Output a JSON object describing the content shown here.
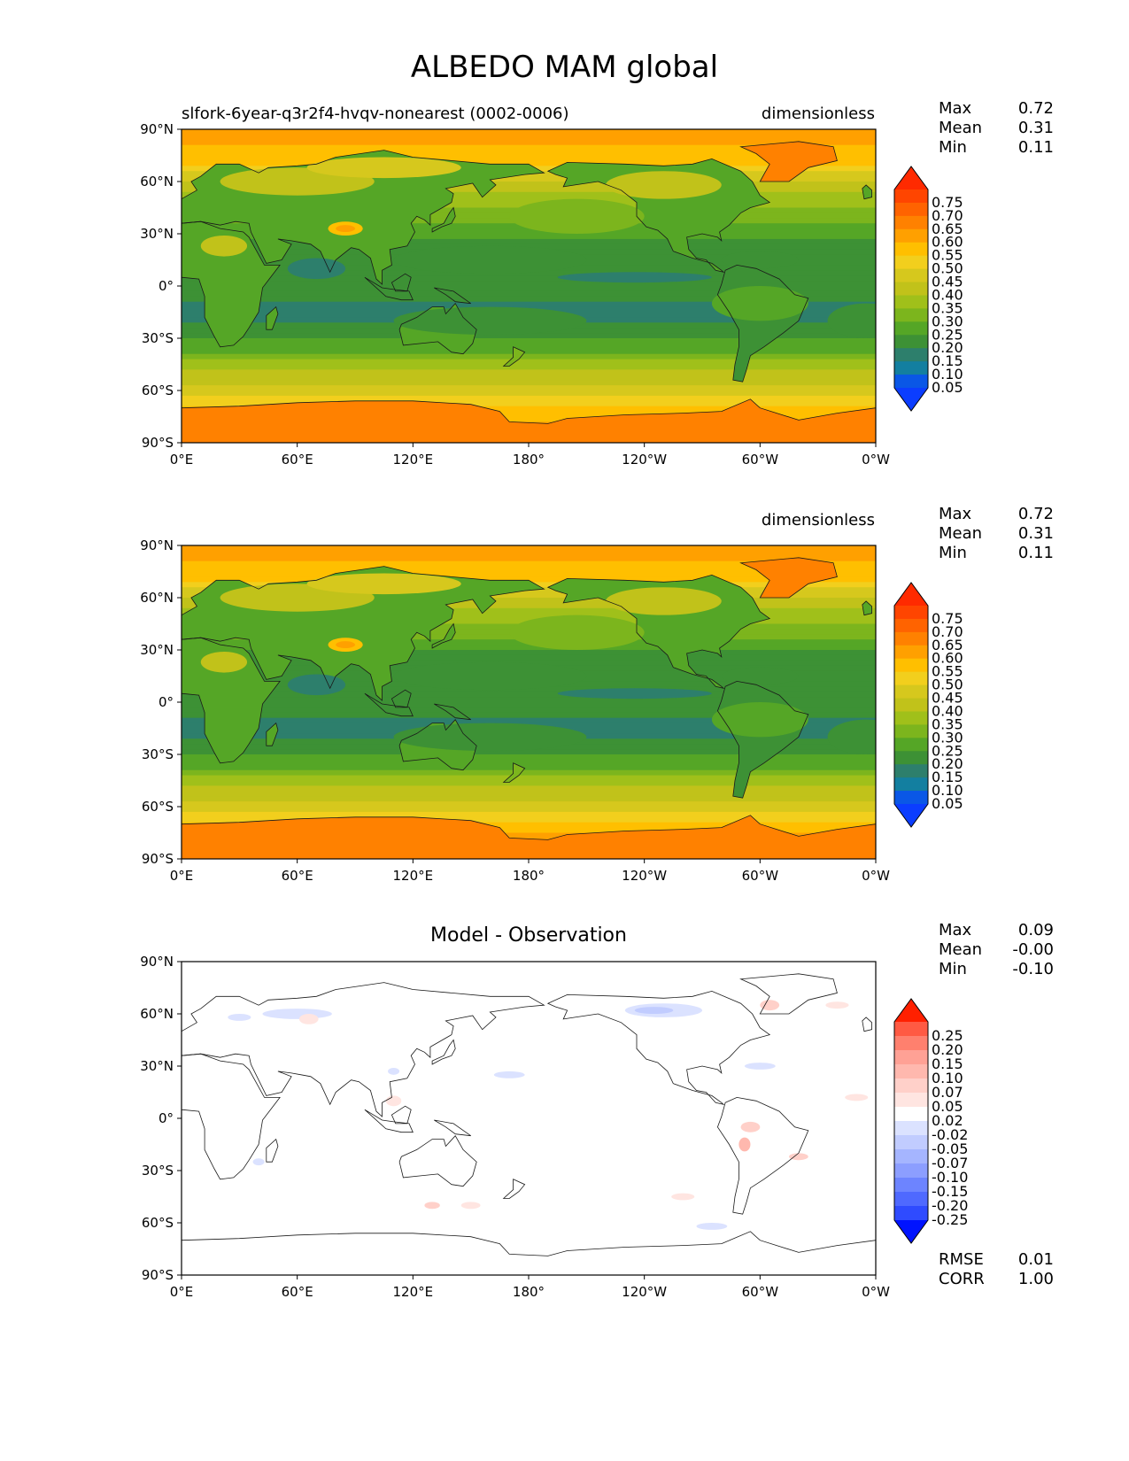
{
  "figure": {
    "title": "ALBEDO MAM global"
  },
  "panels": [
    {
      "id": "model",
      "left_label": "slfork-6year-q3r2f4-hvqv-nonearest (0002-0006)",
      "right_label": "dimensionless",
      "center_label": "",
      "stats": [
        {
          "label": "Max",
          "value": "0.72"
        },
        {
          "label": "Mean",
          "value": "0.31"
        },
        {
          "label": "Min",
          "value": "0.11"
        }
      ],
      "colorbar_ticks": [
        "0.75",
        "0.70",
        "0.65",
        "0.60",
        "0.55",
        "0.50",
        "0.45",
        "0.40",
        "0.35",
        "0.30",
        "0.25",
        "0.20",
        "0.15",
        "0.10",
        "0.05"
      ],
      "colorbar_colors": [
        "#ff2a00",
        "#ff4500",
        "#ff6300",
        "#ff8100",
        "#ffa000",
        "#ffbf00",
        "#f2cf1d",
        "#d6c81d",
        "#c1c21a",
        "#a0c01a",
        "#7cb51d",
        "#55a626",
        "#3d9135",
        "#2d7f6c",
        "#137fa0",
        "#0a57e6",
        "#0b3dff"
      ],
      "overflow_colors": {
        "max": "#ff2a00",
        "min": "#0b3dff"
      },
      "field": "albedo"
    },
    {
      "id": "obs",
      "left_label": "",
      "right_label": "dimensionless",
      "center_label": "",
      "stats": [
        {
          "label": "Max",
          "value": "0.72"
        },
        {
          "label": "Mean",
          "value": "0.31"
        },
        {
          "label": "Min",
          "value": "0.11"
        }
      ],
      "colorbar_ticks": [
        "0.75",
        "0.70",
        "0.65",
        "0.60",
        "0.55",
        "0.50",
        "0.45",
        "0.40",
        "0.35",
        "0.30",
        "0.25",
        "0.20",
        "0.15",
        "0.10",
        "0.05"
      ],
      "colorbar_colors": [
        "#ff2a00",
        "#ff4500",
        "#ff6300",
        "#ff8100",
        "#ffa000",
        "#ffbf00",
        "#f2cf1d",
        "#d6c81d",
        "#c1c21a",
        "#a0c01a",
        "#7cb51d",
        "#55a626",
        "#3d9135",
        "#2d7f6c",
        "#137fa0",
        "#0a57e6",
        "#0b3dff"
      ],
      "overflow_colors": {
        "max": "#ff2a00",
        "min": "#0b3dff"
      },
      "field": "albedo"
    },
    {
      "id": "diff",
      "left_label": "",
      "right_label": "",
      "center_label": "Model - Observation",
      "stats": [
        {
          "label": "Max",
          "value": "0.09"
        },
        {
          "label": "Mean",
          "value": "-0.00"
        },
        {
          "label": "Min",
          "value": "-0.10"
        }
      ],
      "bottom_stats": [
        {
          "label": "RMSE",
          "value": "0.01"
        },
        {
          "label": "CORR",
          "value": "1.00"
        }
      ],
      "colorbar_ticks": [
        "0.25",
        "0.20",
        "0.15",
        "0.10",
        "0.07",
        "0.05",
        "0.02",
        "-0.02",
        "-0.05",
        "-0.07",
        "-0.10",
        "-0.15",
        "-0.20",
        "-0.25"
      ],
      "colorbar_colors": [
        "#ff3517",
        "#ff5a43",
        "#ff806e",
        "#ffa195",
        "#ffb8ae",
        "#ffd0c9",
        "#ffe5e1",
        "#ffffff",
        "#dbe2ff",
        "#c1ccff",
        "#a5b5ff",
        "#8c9eff",
        "#6d84ff",
        "#4f69ff",
        "#2f4bff",
        "#0b28ff"
      ],
      "overflow_colors": {
        "max": "#ff2000",
        "min": "#0013ff"
      },
      "field": "diff"
    }
  ],
  "chart_data": [
    {
      "type": "heatmap",
      "title": "ALBEDO MAM global",
      "subtitle": "slfork-6year-q3r2f4-hvqv-nonearest (0002-0006)",
      "units": "dimensionless",
      "x_ticks": [
        "0°E",
        "60°E",
        "120°E",
        "180°",
        "120°W",
        "60°W",
        "0°W"
      ],
      "y_ticks": [
        "90°N",
        "60°N",
        "30°N",
        "0°",
        "30°S",
        "60°S",
        "90°S"
      ],
      "xlim": [
        0,
        360
      ],
      "ylim": [
        -90,
        90
      ],
      "levels": [
        0.05,
        0.1,
        0.15,
        0.2,
        0.25,
        0.3,
        0.35,
        0.4,
        0.45,
        0.5,
        0.55,
        0.6,
        0.65,
        0.7,
        0.75
      ],
      "zonal_profile": {
        "lat": [
          90,
          80,
          70,
          60,
          50,
          40,
          30,
          20,
          10,
          0,
          -10,
          -20,
          -30,
          -40,
          -50,
          -60,
          -70,
          -80,
          -90
        ],
        "value": [
          0.62,
          0.6,
          0.56,
          0.44,
          0.38,
          0.33,
          0.26,
          0.2,
          0.22,
          0.24,
          0.2,
          0.19,
          0.24,
          0.32,
          0.42,
          0.46,
          0.55,
          0.62,
          0.62
        ]
      },
      "stats": {
        "max": 0.72,
        "mean": 0.31,
        "min": 0.11
      }
    },
    {
      "type": "heatmap",
      "title": "",
      "units": "dimensionless",
      "x_ticks": [
        "0°E",
        "60°E",
        "120°E",
        "180°",
        "120°W",
        "60°W",
        "0°W"
      ],
      "y_ticks": [
        "90°N",
        "60°N",
        "30°N",
        "0°",
        "30°S",
        "60°S",
        "90°S"
      ],
      "xlim": [
        0,
        360
      ],
      "ylim": [
        -90,
        90
      ],
      "levels": [
        0.05,
        0.1,
        0.15,
        0.2,
        0.25,
        0.3,
        0.35,
        0.4,
        0.45,
        0.5,
        0.55,
        0.6,
        0.65,
        0.7,
        0.75
      ],
      "zonal_profile": {
        "lat": [
          90,
          80,
          70,
          60,
          50,
          40,
          30,
          20,
          10,
          0,
          -10,
          -20,
          -30,
          -40,
          -50,
          -60,
          -70,
          -80,
          -90
        ],
        "value": [
          0.62,
          0.6,
          0.56,
          0.44,
          0.38,
          0.33,
          0.25,
          0.2,
          0.22,
          0.24,
          0.2,
          0.19,
          0.24,
          0.32,
          0.42,
          0.46,
          0.56,
          0.63,
          0.62
        ]
      },
      "stats": {
        "max": 0.72,
        "mean": 0.31,
        "min": 0.11
      }
    },
    {
      "type": "heatmap",
      "title": "Model - Observation",
      "x_ticks": [
        "0°E",
        "60°E",
        "120°E",
        "180°",
        "120°W",
        "60°W",
        "0°W"
      ],
      "y_ticks": [
        "90°N",
        "60°N",
        "30°N",
        "0°",
        "30°S",
        "60°S",
        "90°S"
      ],
      "xlim": [
        0,
        360
      ],
      "ylim": [
        -90,
        90
      ],
      "levels": [
        -0.25,
        -0.2,
        -0.15,
        -0.1,
        -0.07,
        -0.05,
        -0.02,
        0.02,
        0.05,
        0.07,
        0.1,
        0.15,
        0.2,
        0.25
      ],
      "stats": {
        "max": 0.09,
        "mean": -0.0,
        "min": -0.1,
        "rmse": 0.01,
        "corr": 1.0
      }
    }
  ]
}
